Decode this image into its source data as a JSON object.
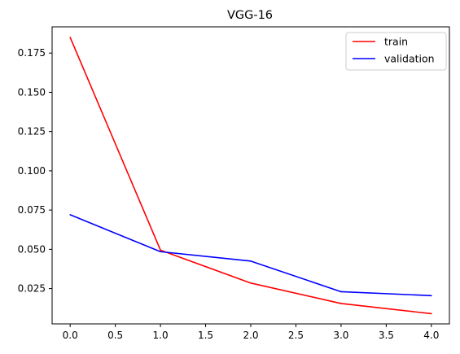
{
  "chart_data": {
    "type": "line",
    "title": "VGG-16",
    "xlabel": "",
    "ylabel": "",
    "x": [
      0,
      1,
      2,
      3,
      4
    ],
    "series": [
      {
        "name": "train",
        "color": "#ff0000",
        "values": [
          0.185,
          0.0495,
          0.0285,
          0.0155,
          0.009
        ]
      },
      {
        "name": "validation",
        "color": "#0000ff",
        "values": [
          0.072,
          0.0485,
          0.0425,
          0.023,
          0.0205
        ]
      }
    ],
    "xlim": [
      -0.2,
      4.2
    ],
    "ylim": [
      0.0025,
      0.1917
    ],
    "xticks": [
      {
        "value": 0.0,
        "label": "0.0"
      },
      {
        "value": 0.5,
        "label": "0.5"
      },
      {
        "value": 1.0,
        "label": "1.0"
      },
      {
        "value": 1.5,
        "label": "1.5"
      },
      {
        "value": 2.0,
        "label": "2.0"
      },
      {
        "value": 2.5,
        "label": "2.5"
      },
      {
        "value": 3.0,
        "label": "3.0"
      },
      {
        "value": 3.5,
        "label": "3.5"
      },
      {
        "value": 4.0,
        "label": "4.0"
      }
    ],
    "yticks": [
      {
        "value": 0.025,
        "label": "0.025"
      },
      {
        "value": 0.05,
        "label": "0.050"
      },
      {
        "value": 0.075,
        "label": "0.075"
      },
      {
        "value": 0.1,
        "label": "0.100"
      },
      {
        "value": 0.125,
        "label": "0.125"
      },
      {
        "value": 0.15,
        "label": "0.150"
      },
      {
        "value": 0.175,
        "label": "0.175"
      }
    ],
    "grid": false,
    "legend": "top-right"
  }
}
